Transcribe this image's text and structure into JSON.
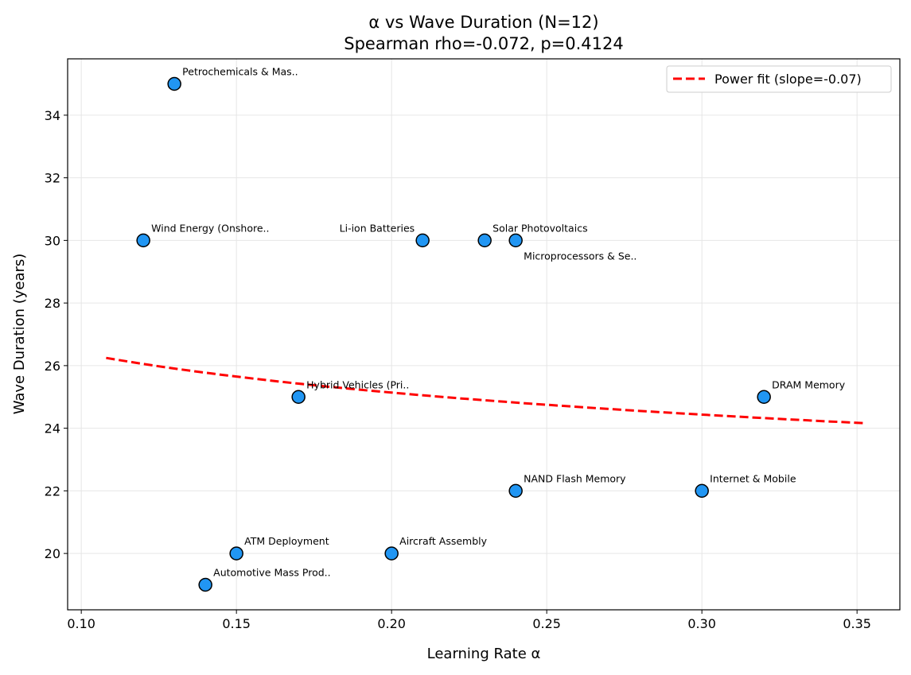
{
  "chart_data": {
    "type": "scatter",
    "title": "α vs Wave Duration (N=12)",
    "subtitle": "Spearman rho=-0.072, p=0.4124",
    "xlabel": "Learning Rate α",
    "ylabel": "Wave Duration (years)",
    "xlim": [
      0.0956,
      0.3638
    ],
    "ylim": [
      18.2,
      35.8
    ],
    "xticks": [
      "0.10",
      "0.15",
      "0.20",
      "0.25",
      "0.30",
      "0.35"
    ],
    "yticks": [
      "20",
      "22",
      "24",
      "26",
      "28",
      "30",
      "32",
      "34"
    ],
    "grid": true,
    "legend_position": "top-right",
    "point_color": "#2196f3",
    "fit_color": "#ff0000",
    "points": [
      {
        "label": "Petrochemicals & Mas..",
        "x": 0.13,
        "y": 35
      },
      {
        "label": "Wind Energy (Onshore..",
        "x": 0.12,
        "y": 30
      },
      {
        "label": "Li-ion Batteries",
        "x": 0.21,
        "y": 30
      },
      {
        "label": "Solar Photovoltaics",
        "x": 0.23,
        "y": 30
      },
      {
        "label": "Microprocessors & Se..",
        "x": 0.24,
        "y": 30
      },
      {
        "label": "Hybrid Vehicles (Pri..",
        "x": 0.17,
        "y": 25
      },
      {
        "label": "DRAM Memory",
        "x": 0.32,
        "y": 25
      },
      {
        "label": "NAND Flash Memory",
        "x": 0.24,
        "y": 22
      },
      {
        "label": "Internet & Mobile",
        "x": 0.3,
        "y": 22
      },
      {
        "label": "ATM Deployment",
        "x": 0.15,
        "y": 20
      },
      {
        "label": "Aircraft Assembly",
        "x": 0.2,
        "y": 20
      },
      {
        "label": "Automotive Mass Prod..",
        "x": 0.14,
        "y": 19
      }
    ],
    "fit": {
      "name": "Power fit (slope=-0.07)",
      "a": 22.46,
      "slope": -0.07,
      "x_range": [
        0.108,
        0.352
      ]
    }
  }
}
